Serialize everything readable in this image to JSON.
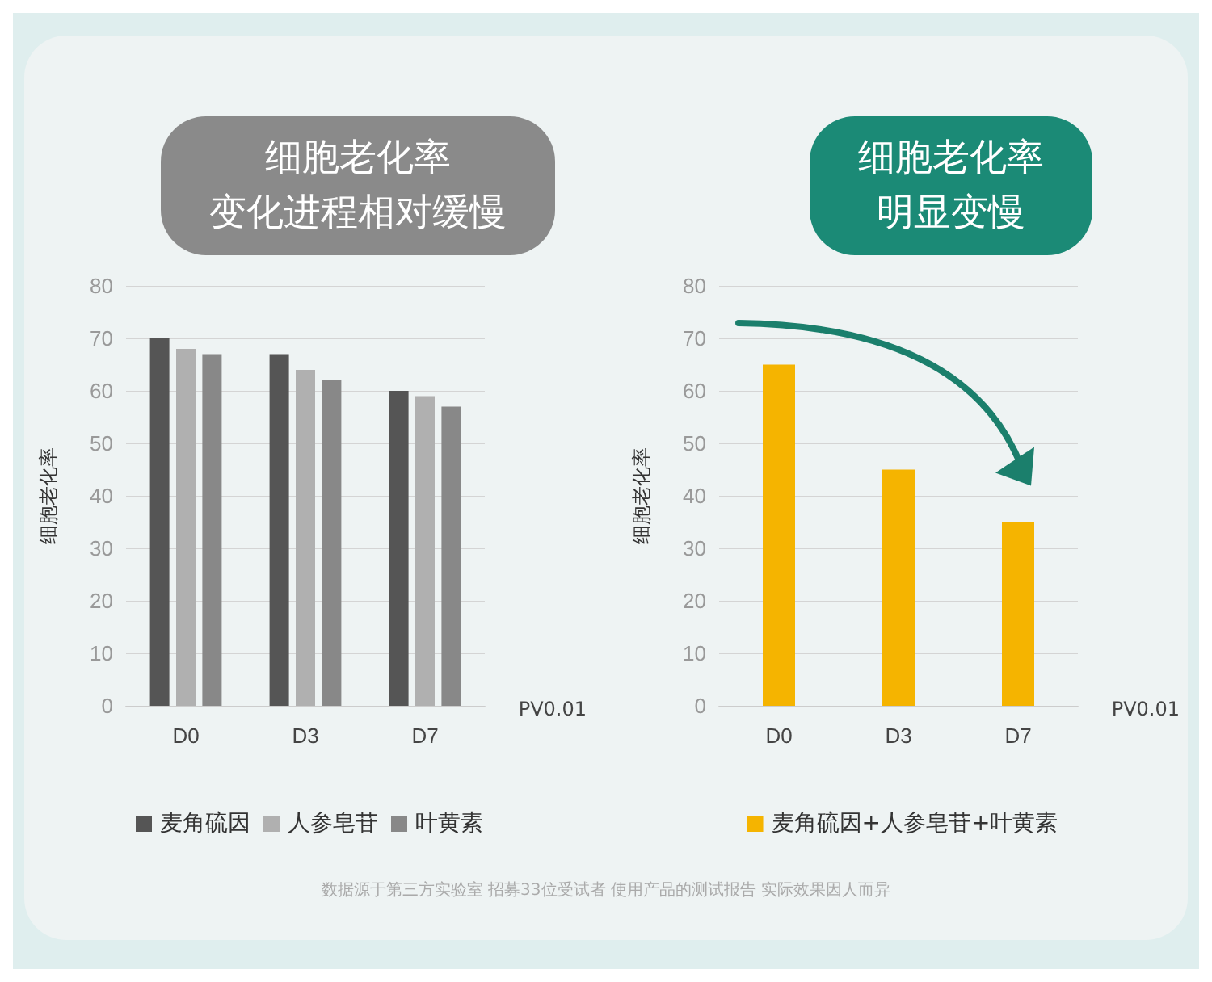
{
  "chart_data": [
    {
      "type": "bar",
      "title": "细胞老化率",
      "subtitle": "变化进程相对缓慢",
      "ylabel": "细胞老化率",
      "categories": [
        "D0",
        "D3",
        "D7"
      ],
      "series": [
        {
          "name": "麦角硫因",
          "color": "#555555",
          "values": [
            70,
            67,
            60
          ]
        },
        {
          "name": "人参皂苷",
          "color": "#b0b0b0",
          "values": [
            68,
            64,
            59
          ]
        },
        {
          "name": "叶黄素",
          "color": "#888888",
          "values": [
            67,
            62,
            57
          ]
        }
      ],
      "ylim": [
        0,
        80
      ],
      "yticks": [
        0,
        10,
        20,
        30,
        40,
        50,
        60,
        70,
        80
      ],
      "grid": "y",
      "legend": "bottom",
      "annotations": [
        "PV0.01"
      ]
    },
    {
      "type": "bar",
      "title": "细胞老化率",
      "subtitle": "明显变慢",
      "ylabel": "细胞老化率",
      "categories": [
        "D0",
        "D3",
        "D7"
      ],
      "series": [
        {
          "name": "麦角硫因+人参皂苷+叶黄素",
          "color": "#f5b400",
          "values": [
            65,
            45,
            35
          ]
        }
      ],
      "ylim": [
        0,
        80
      ],
      "yticks": [
        0,
        10,
        20,
        30,
        40,
        50,
        60,
        70,
        80
      ],
      "grid": "y",
      "legend": "bottom",
      "annotations": [
        "PV0.01",
        "数据源于第三方实验室 招募33位受试者 使用产品的测试报告 实际效果因人而异"
      ]
    }
  ]
}
